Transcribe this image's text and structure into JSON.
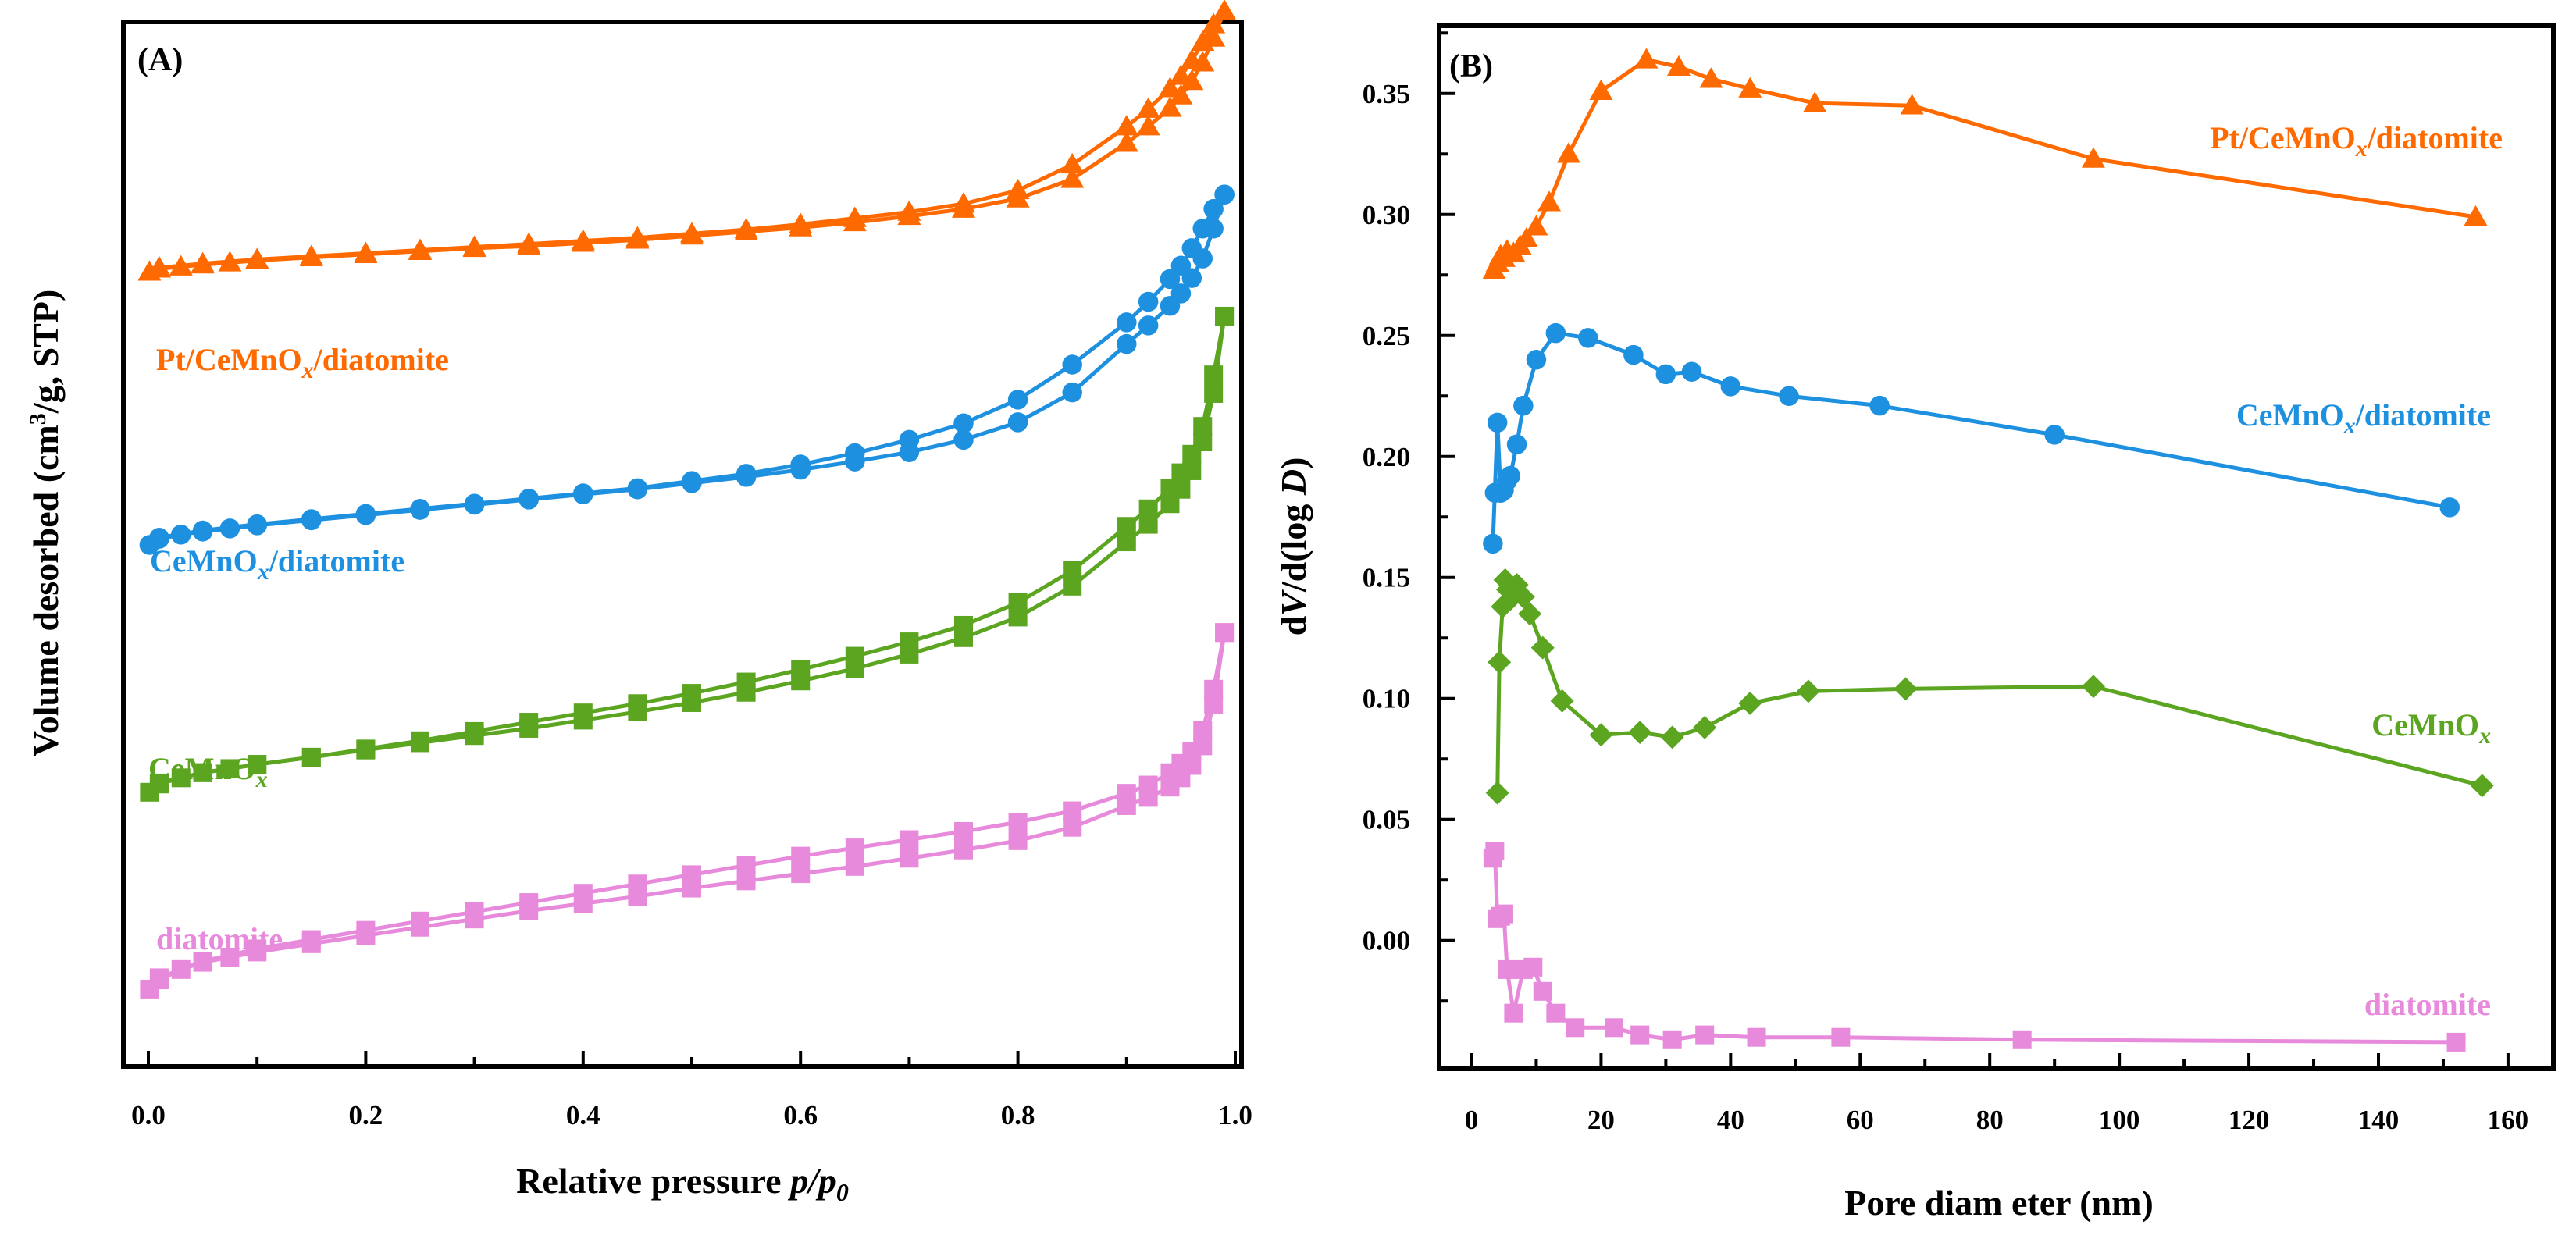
{
  "chart_data": [
    {
      "panel": "(A)",
      "type": "line",
      "title": "",
      "xlabel_main": "Relative pressure ",
      "xlabel_italic": "p/p",
      "xlabel_sub": "0",
      "ylabel_pre": "Volume desorbed (cm",
      "ylabel_sup": "3",
      "ylabel_post": "/g, STP)",
      "xlim": [
        0,
        1.0
      ],
      "ylim": [
        0,
        100
      ],
      "yticks_shown": false,
      "xticks": [
        "0.0",
        "0.2",
        "0.4",
        "0.6",
        "0.8",
        "1.0"
      ],
      "series": [
        {
          "name": "Pt/CeMnOx/diatomite",
          "label_main": "Pt/CeMnO",
          "label_sub": "x",
          "label_post": "/diatomite",
          "color": "#FF6A00",
          "marker": "triangle",
          "adsorption": {
            "x": [
              0.001,
              0.01,
              0.03,
              0.05,
              0.075,
              0.1,
              0.15,
              0.2,
              0.25,
              0.3,
              0.35,
              0.4,
              0.45,
              0.5,
              0.55,
              0.6,
              0.65,
              0.7,
              0.75,
              0.8,
              0.85,
              0.9,
              0.92,
              0.94,
              0.95,
              0.96,
              0.97,
              0.98,
              0.99
            ],
            "y": [
              76.5,
              76.8,
              77.0,
              77.2,
              77.4,
              77.6,
              77.9,
              78.2,
              78.5,
              78.8,
              79.0,
              79.3,
              79.6,
              80.0,
              80.4,
              80.8,
              81.3,
              81.9,
              82.6,
              83.6,
              85.5,
              89.0,
              90.6,
              92.4,
              93.6,
              95.0,
              96.8,
              99.2,
              101.8
            ]
          },
          "desorption": {
            "x": [
              0.99,
              0.98,
              0.97,
              0.96,
              0.95,
              0.94,
              0.92,
              0.9,
              0.85,
              0.8,
              0.75,
              0.7,
              0.65,
              0.6,
              0.55,
              0.5,
              0.45,
              0.4,
              0.35,
              0.3,
              0.25,
              0.2,
              0.15,
              0.1,
              0.05,
              0.01
            ],
            "y": [
              101.8,
              100.5,
              98.8,
              97.0,
              95.5,
              94.3,
              92.3,
              90.6,
              86.9,
              84.4,
              83.1,
              82.3,
              81.7,
              81.1,
              80.6,
              80.2,
              79.8,
              79.5,
              79.2,
              78.9,
              78.6,
              78.3,
              78.0,
              77.7,
              77.3,
              76.9
            ]
          }
        },
        {
          "name": "CeMnOx/diatomite",
          "label_main": "CeMnO",
          "label_sub": "x",
          "label_post": "/diatomite",
          "color": "#1E90E0",
          "marker": "circle",
          "adsorption": {
            "x": [
              0.001,
              0.01,
              0.03,
              0.05,
              0.075,
              0.1,
              0.15,
              0.2,
              0.25,
              0.3,
              0.35,
              0.4,
              0.45,
              0.5,
              0.55,
              0.6,
              0.65,
              0.7,
              0.75,
              0.8,
              0.85,
              0.9,
              0.92,
              0.94,
              0.95,
              0.96,
              0.97,
              0.98,
              0.99
            ],
            "y": [
              50.0,
              50.6,
              51.0,
              51.3,
              51.6,
              51.9,
              52.4,
              52.9,
              53.4,
              53.9,
              54.4,
              54.9,
              55.4,
              56.0,
              56.6,
              57.3,
              58.1,
              59.0,
              60.2,
              61.9,
              64.8,
              69.5,
              71.3,
              73.2,
              74.4,
              75.9,
              77.8,
              80.7,
              84.0
            ]
          },
          "desorption": {
            "x": [
              0.99,
              0.98,
              0.97,
              0.96,
              0.95,
              0.94,
              0.92,
              0.9,
              0.85,
              0.8,
              0.75,
              0.7,
              0.65,
              0.6,
              0.55,
              0.5,
              0.45,
              0.4,
              0.35,
              0.3,
              0.25,
              0.2,
              0.15,
              0.1,
              0.05,
              0.01
            ],
            "y": [
              84.0,
              82.6,
              80.7,
              78.8,
              77.1,
              75.8,
              73.6,
              71.6,
              67.5,
              64.1,
              61.8,
              60.2,
              58.9,
              57.8,
              56.9,
              56.2,
              55.5,
              55.0,
              54.5,
              54.0,
              53.5,
              53.0,
              52.5,
              52.0,
              51.4,
              50.7
            ]
          }
        },
        {
          "name": "CeMnOx",
          "label_main": "CeMnO",
          "label_sub": "x",
          "label_post": "",
          "color": "#5BA521",
          "marker": "square",
          "adsorption": {
            "x": [
              0.001,
              0.01,
              0.03,
              0.05,
              0.075,
              0.1,
              0.15,
              0.2,
              0.25,
              0.3,
              0.35,
              0.4,
              0.45,
              0.5,
              0.55,
              0.6,
              0.65,
              0.7,
              0.75,
              0.8,
              0.85,
              0.9,
              0.92,
              0.94,
              0.95,
              0.96,
              0.97,
              0.98,
              0.99
            ],
            "y": [
              26.0,
              26.8,
              27.4,
              27.9,
              28.3,
              28.7,
              29.4,
              30.1,
              30.8,
              31.5,
              32.2,
              33.0,
              33.8,
              34.7,
              35.7,
              36.8,
              38.0,
              39.4,
              41.0,
              43.0,
              46.0,
              50.3,
              52.0,
              54.0,
              55.4,
              57.2,
              60.0,
              64.7,
              72.2
            ]
          },
          "desorption": {
            "x": [
              0.99,
              0.98,
              0.97,
              0.96,
              0.95,
              0.94,
              0.92,
              0.9,
              0.85,
              0.8,
              0.75,
              0.7,
              0.65,
              0.6,
              0.55,
              0.5,
              0.45,
              0.4,
              0.35,
              0.3,
              0.25,
              0.2,
              0.15,
              0.1,
              0.05,
              0.01
            ],
            "y": [
              72.2,
              66.5,
              61.5,
              58.8,
              57.0,
              55.5,
              53.5,
              51.8,
              47.5,
              44.4,
              42.2,
              40.6,
              39.2,
              37.9,
              36.7,
              35.6,
              34.6,
              33.7,
              32.8,
              31.9,
              31.0,
              30.2,
              29.4,
              28.7,
              27.9,
              26.9
            ]
          }
        },
        {
          "name": "diatomite",
          "label_main": "diatomite",
          "label_sub": "",
          "label_post": "",
          "color": "#E88ADB",
          "marker": "square",
          "adsorption": {
            "x": [
              0.001,
              0.01,
              0.03,
              0.05,
              0.075,
              0.1,
              0.15,
              0.2,
              0.25,
              0.3,
              0.35,
              0.4,
              0.45,
              0.5,
              0.55,
              0.6,
              0.65,
              0.7,
              0.75,
              0.8,
              0.85,
              0.9,
              0.92,
              0.94,
              0.95,
              0.96,
              0.97,
              0.98,
              0.99
            ],
            "y": [
              6.9,
              7.8,
              8.8,
              9.5,
              10.0,
              10.5,
              11.3,
              12.1,
              12.9,
              13.7,
              14.5,
              15.2,
              15.9,
              16.7,
              17.4,
              18.1,
              18.8,
              19.6,
              20.4,
              21.3,
              22.6,
              24.7,
              25.5,
              26.5,
              27.4,
              28.6,
              30.5,
              34.5,
              41.5
            ]
          },
          "desorption": {
            "x": [
              0.99,
              0.98,
              0.97,
              0.96,
              0.95,
              0.94,
              0.92,
              0.9,
              0.85,
              0.8,
              0.75,
              0.7,
              0.65,
              0.6,
              0.55,
              0.5,
              0.45,
              0.4,
              0.35,
              0.3,
              0.25,
              0.2,
              0.15,
              0.1,
              0.05,
              0.01
            ],
            "y": [
              41.5,
              36.0,
              32.0,
              30.0,
              28.8,
              27.9,
              26.7,
              25.9,
              24.2,
              23.1,
              22.2,
              21.4,
              20.6,
              19.8,
              18.9,
              18.0,
              17.1,
              16.2,
              15.3,
              14.4,
              13.5,
              12.6,
              11.7,
              10.8,
              9.6,
              8.0
            ]
          }
        }
      ]
    },
    {
      "panel": "(B)",
      "type": "line",
      "title": "",
      "xlabel": "Pore diam eter (nm)",
      "ylabel_pre": "d",
      "ylabel_italic1": "V",
      "ylabel_mid": "/d(log ",
      "ylabel_italic2": "D",
      "ylabel_post": ")",
      "xlim": [
        -5,
        167
      ],
      "ylim": [
        -0.053,
        0.378
      ],
      "xticks": [
        0,
        20,
        40,
        60,
        80,
        100,
        120,
        140,
        160
      ],
      "yticks": [
        0.0,
        0.05,
        0.1,
        0.15,
        0.2,
        0.25,
        0.3,
        0.35
      ],
      "ytick_labels": [
        "0.00",
        "0.05",
        "0.10",
        "0.15",
        "0.20",
        "0.25",
        "0.30",
        "0.35"
      ],
      "series": [
        {
          "name": "Pt/CeMnOx/diatomite",
          "label_main": "Pt/CeMnO",
          "label_sub": "x",
          "label_post": "/diatomite",
          "color": "#FF6A00",
          "marker": "triangle",
          "x": [
            3.5,
            4.0,
            4.5,
            5.0,
            5.5,
            6.5,
            7.5,
            8.5,
            10.0,
            12.0,
            15.0,
            20.0,
            27.0,
            32.0,
            37.0,
            43.0,
            53.0,
            68.0,
            96.0,
            155.0
          ],
          "y": [
            0.277,
            0.28,
            0.283,
            0.282,
            0.285,
            0.284,
            0.287,
            0.29,
            0.295,
            0.305,
            0.325,
            0.351,
            0.364,
            0.361,
            0.356,
            0.352,
            0.346,
            0.345,
            0.323,
            0.299
          ]
        },
        {
          "name": "CeMnOx/diatomite",
          "label_main": "CeMnO",
          "label_sub": "x",
          "label_post": "/diatomite",
          "color": "#1E90E0",
          "marker": "circle",
          "x": [
            3.3,
            3.6,
            4.0,
            4.5,
            5.0,
            5.5,
            6.0,
            7.0,
            8.0,
            10.0,
            13.0,
            18.0,
            25.0,
            30.0,
            34.0,
            40.0,
            49.0,
            63.0,
            90.0,
            151.0
          ],
          "y": [
            0.164,
            0.185,
            0.214,
            0.185,
            0.186,
            0.19,
            0.192,
            0.205,
            0.221,
            0.24,
            0.251,
            0.249,
            0.242,
            0.234,
            0.235,
            0.229,
            0.225,
            0.221,
            0.209,
            0.179
          ]
        },
        {
          "name": "CeMnOx",
          "label_main": "CeMnO",
          "label_sub": "x",
          "label_post": "",
          "color": "#5BA521",
          "marker": "diamond",
          "x": [
            4.0,
            4.3,
            4.8,
            5.2,
            5.6,
            6.0,
            7.0,
            8.0,
            9.0,
            11.0,
            14.0,
            20.0,
            26.0,
            31.0,
            36.0,
            43.0,
            52.0,
            67.0,
            96.0,
            156.0
          ],
          "y": [
            0.061,
            0.115,
            0.138,
            0.149,
            0.145,
            0.141,
            0.147,
            0.142,
            0.135,
            0.121,
            0.099,
            0.085,
            0.086,
            0.084,
            0.088,
            0.098,
            0.103,
            0.104,
            0.105,
            0.064
          ]
        },
        {
          "name": "diatomite",
          "label_main": "diatomite",
          "label_sub": "",
          "label_post": "",
          "color": "#E88ADB",
          "marker": "square",
          "x": [
            3.3,
            3.6,
            4.0,
            4.5,
            5.0,
            5.5,
            6.5,
            8.0,
            9.5,
            11.0,
            13.0,
            16.0,
            22.0,
            26.0,
            31.0,
            36.0,
            44.0,
            57.0,
            85.0,
            152.0
          ],
          "y": [
            0.034,
            0.037,
            0.009,
            0.01,
            0.011,
            -0.012,
            -0.03,
            -0.012,
            -0.011,
            -0.021,
            -0.03,
            -0.036,
            -0.036,
            -0.039,
            -0.041,
            -0.039,
            -0.04,
            -0.04,
            -0.041,
            -0.042
          ]
        }
      ]
    }
  ]
}
